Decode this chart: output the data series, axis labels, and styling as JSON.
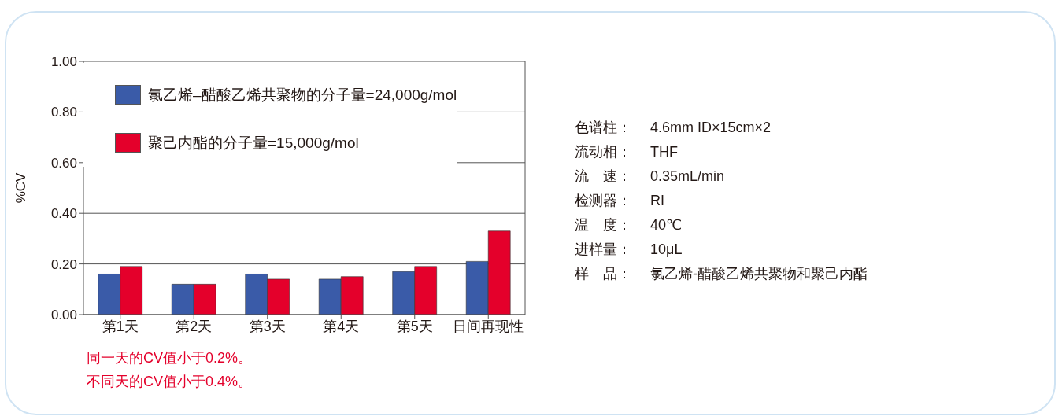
{
  "chart_data": {
    "type": "bar",
    "ylabel": "%CV",
    "categories": [
      "第1天",
      "第2天",
      "第3天",
      "第4天",
      "第5天",
      "日间再现性"
    ],
    "series": [
      {
        "name": "氯乙烯–醋酸乙烯共聚物的分子量=24,000g/mol",
        "color": "#3a5ba8",
        "values": [
          0.16,
          0.12,
          0.16,
          0.14,
          0.17,
          0.21
        ]
      },
      {
        "name": "聚己内酯的分子量=15,000g/mol",
        "color": "#e4002b",
        "values": [
          0.19,
          0.12,
          0.14,
          0.15,
          0.19,
          0.33
        ]
      }
    ],
    "ylim": [
      0,
      1
    ],
    "yticks": [
      {
        "value": 0,
        "label": "0.00"
      },
      {
        "value": 0.2,
        "label": "0.20"
      },
      {
        "value": 0.4,
        "label": "0.40"
      },
      {
        "value": 0.6,
        "label": "0.60"
      },
      {
        "value": 0.8,
        "label": "0.80"
      },
      {
        "value": 1,
        "label": "1.00"
      }
    ],
    "grid": "y",
    "legend": "top left",
    "annotations": [
      "同一天的CV值小于0.2%。",
      "不同天的CV值小于0.4%。",
      "色谱柱： 4.6mm ID×15cm×2",
      "流动相： THF",
      "流　速： 0.35mL/min",
      "检测器： RI",
      "温　度： 40℃",
      "进样量： 10μL",
      "样　品： 氯乙烯-醋酸乙烯共聚物和聚己内酯"
    ]
  }
}
